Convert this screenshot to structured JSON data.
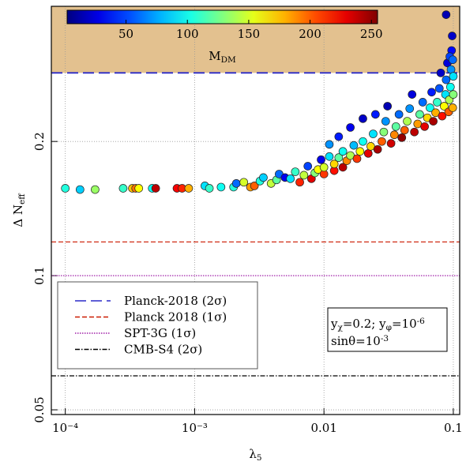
{
  "chart_data": {
    "type": "scatter",
    "xlabel": [
      {
        "t": "λ"
      },
      {
        "sub": "5"
      }
    ],
    "ylabel": [
      {
        "t": "Δ N"
      },
      {
        "sub": "eff"
      }
    ],
    "xscale": "log",
    "yscale": "log",
    "xlim": [
      7.8e-05,
      0.112
    ],
    "ylim": [
      0.0488,
      0.402
    ],
    "xticks": [
      {
        "value": 0.0001,
        "label": "10⁻⁴"
      },
      {
        "value": 0.001,
        "label": "10⁻³"
      },
      0.01,
      0.1
    ],
    "yticks": [
      0.05,
      0.1,
      0.2
    ],
    "grid": true,
    "shade_color": "#e3c18f",
    "colorbar": {
      "label": [
        {
          "t": "M"
        },
        {
          "sub": "DM"
        }
      ],
      "lim": [
        2,
        255
      ],
      "ticks": [
        50,
        100,
        150,
        200,
        250
      ],
      "colormap": "jet"
    },
    "lines": [
      {
        "name": "Planck-2018 (2σ)",
        "color": "#2a2ac8",
        "value": 0.285,
        "dash": "dashed"
      },
      {
        "name": "Planck 2018 (1σ)",
        "color": "#cc1a00",
        "value": 0.119,
        "dash": "short-dashed"
      },
      {
        "name": "SPT-3G (1σ)",
        "color": "#a020a8",
        "value": 0.1,
        "dash": "dotted"
      },
      {
        "name": "CMB-S4 (2σ)",
        "color": "#000000",
        "value": 0.0596,
        "dash": "dashdot"
      }
    ],
    "legend": "lower left",
    "annotation": [
      [
        {
          "t": "y"
        },
        {
          "sub": "χ"
        },
        {
          "t": "=0.2; y"
        },
        {
          "sub": "φ"
        },
        {
          "t": "=10"
        },
        {
          "sup": "-6"
        }
      ],
      [
        {
          "t": "sinθ=10"
        },
        {
          "sup": "-3"
        }
      ]
    ],
    "x": [
      0.0001,
      0.00013,
      0.00017,
      0.00028,
      0.00033,
      0.00035,
      0.00037,
      0.00047,
      0.0005,
      0.00073,
      0.0008,
      0.0009,
      0.0012,
      0.0013,
      0.0016,
      0.002,
      0.0021,
      0.0024,
      0.0027,
      0.0029,
      0.0032,
      0.0034,
      0.0039,
      0.0043,
      0.0045,
      0.005,
      0.0055,
      0.006,
      0.0065,
      0.007,
      0.0075,
      0.008,
      0.0085,
      0.009,
      0.0095,
      0.01,
      0.01,
      0.011,
      0.011,
      0.012,
      0.012,
      0.013,
      0.013,
      0.014,
      0.014,
      0.015,
      0.016,
      0.016,
      0.017,
      0.018,
      0.019,
      0.02,
      0.02,
      0.022,
      0.023,
      0.024,
      0.025,
      0.026,
      0.028,
      0.029,
      0.03,
      0.031,
      0.033,
      0.035,
      0.036,
      0.038,
      0.04,
      0.042,
      0.044,
      0.046,
      0.048,
      0.05,
      0.053,
      0.055,
      0.058,
      0.06,
      0.063,
      0.066,
      0.068,
      0.07,
      0.073,
      0.075,
      0.078,
      0.08,
      0.082,
      0.085,
      0.087,
      0.088,
      0.09,
      0.092,
      0.093,
      0.095,
      0.096,
      0.097,
      0.098,
      0.099,
      0.1,
      0.1,
      0.088,
      0.094,
      0.099
    ],
    "y": [
      0.157,
      0.156,
      0.156,
      0.157,
      0.157,
      0.157,
      0.157,
      0.157,
      0.157,
      0.157,
      0.157,
      0.157,
      0.159,
      0.157,
      0.158,
      0.158,
      0.161,
      0.162,
      0.158,
      0.159,
      0.163,
      0.166,
      0.161,
      0.164,
      0.169,
      0.166,
      0.165,
      0.171,
      0.162,
      0.168,
      0.176,
      0.165,
      0.17,
      0.173,
      0.182,
      0.169,
      0.175,
      0.185,
      0.197,
      0.172,
      0.178,
      0.184,
      0.205,
      0.175,
      0.19,
      0.181,
      0.186,
      0.215,
      0.196,
      0.183,
      0.19,
      0.2,
      0.225,
      0.188,
      0.195,
      0.208,
      0.23,
      0.192,
      0.2,
      0.21,
      0.222,
      0.24,
      0.198,
      0.207,
      0.216,
      0.23,
      0.204,
      0.212,
      0.222,
      0.237,
      0.255,
      0.21,
      0.219,
      0.23,
      0.245,
      0.216,
      0.226,
      0.238,
      0.258,
      0.222,
      0.232,
      0.245,
      0.263,
      0.285,
      0.228,
      0.24,
      0.255,
      0.275,
      0.3,
      0.233,
      0.248,
      0.265,
      0.29,
      0.32,
      0.345,
      0.238,
      0.255,
      0.28,
      0.385,
      0.31,
      0.305
    ],
    "m": [
      105,
      85,
      135,
      110,
      175,
      195,
      160,
      100,
      240,
      225,
      215,
      180,
      90,
      110,
      100,
      105,
      60,
      150,
      185,
      200,
      105,
      85,
      145,
      120,
      60,
      30,
      90,
      110,
      215,
      145,
      50,
      230,
      130,
      160,
      30,
      210,
      150,
      90,
      70,
      220,
      170,
      120,
      40,
      240,
      100,
      190,
      140,
      30,
      80,
      210,
      160,
      100,
      20,
      230,
      170,
      90,
      40,
      245,
      200,
      130,
      70,
      15,
      235,
      190,
      120,
      60,
      250,
      200,
      140,
      70,
      25,
      240,
      185,
      120,
      60,
      230,
      170,
      100,
      40,
      245,
      180,
      110,
      55,
      20,
      220,
      160,
      90,
      60,
      25,
      200,
      140,
      100,
      70,
      35,
      20,
      180,
      130,
      90,
      15,
      50,
      60
    ]
  }
}
